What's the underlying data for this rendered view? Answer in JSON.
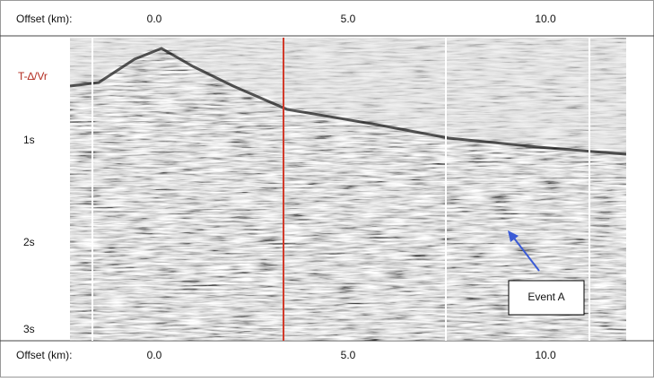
{
  "header": {
    "offset_label": "Offset (km):",
    "ticks": [
      "0.0",
      "5.0",
      "10.0"
    ]
  },
  "footer": {
    "offset_label": "Offset (km):",
    "ticks": [
      "0.0",
      "5.0",
      "10.0"
    ]
  },
  "time_axis": {
    "title": "T-∆/Vr",
    "ticks": [
      "1s",
      "2s",
      "3s"
    ]
  },
  "annotation": "Event A"
}
